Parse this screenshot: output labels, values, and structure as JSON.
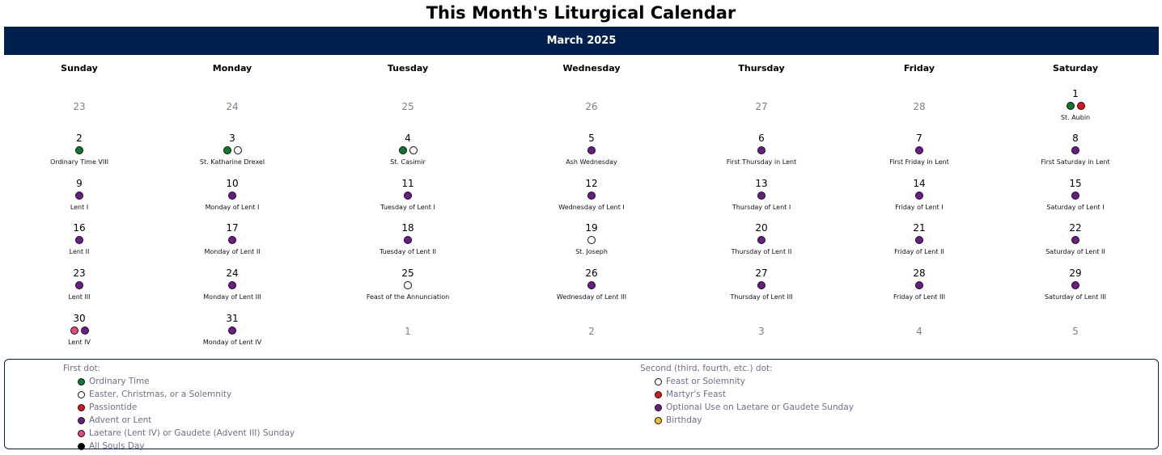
{
  "title": "This Month's Liturgical Calendar",
  "month_label": "March 2025",
  "weekdays": [
    "Sunday",
    "Monday",
    "Tuesday",
    "Wednesday",
    "Thursday",
    "Friday",
    "Saturday"
  ],
  "colors": {
    "navy": "#00214d",
    "green": "#0a7a2a",
    "white": "#ffffff",
    "red": "#e3121a",
    "purple": "#6e1a8a",
    "rose": "#e8487a",
    "black": "#000000",
    "gold": "#f2c21b"
  },
  "weeks": [
    [
      {
        "day": "23",
        "other": true,
        "dots": [],
        "label": ""
      },
      {
        "day": "24",
        "other": true,
        "dots": [],
        "label": ""
      },
      {
        "day": "25",
        "other": true,
        "dots": [],
        "label": ""
      },
      {
        "day": "26",
        "other": true,
        "dots": [],
        "label": ""
      },
      {
        "day": "27",
        "other": true,
        "dots": [],
        "label": ""
      },
      {
        "day": "28",
        "other": true,
        "dots": [],
        "label": ""
      },
      {
        "day": "1",
        "other": false,
        "dots": [
          "green",
          "red"
        ],
        "label": "St. Aubin"
      }
    ],
    [
      {
        "day": "2",
        "other": false,
        "dots": [
          "green"
        ],
        "label": "Ordinary Time VIII"
      },
      {
        "day": "3",
        "other": false,
        "dots": [
          "green",
          "white"
        ],
        "label": "St. Katharine Drexel"
      },
      {
        "day": "4",
        "other": false,
        "dots": [
          "green",
          "white"
        ],
        "label": "St. Casimir"
      },
      {
        "day": "5",
        "other": false,
        "dots": [
          "purple"
        ],
        "label": "Ash Wednesday"
      },
      {
        "day": "6",
        "other": false,
        "dots": [
          "purple"
        ],
        "label": "First Thursday in Lent"
      },
      {
        "day": "7",
        "other": false,
        "dots": [
          "purple"
        ],
        "label": "First Friday in Lent"
      },
      {
        "day": "8",
        "other": false,
        "dots": [
          "purple"
        ],
        "label": "First Saturday in Lent"
      }
    ],
    [
      {
        "day": "9",
        "other": false,
        "dots": [
          "purple"
        ],
        "label": "Lent I"
      },
      {
        "day": "10",
        "other": false,
        "dots": [
          "purple"
        ],
        "label": "Monday of Lent I"
      },
      {
        "day": "11",
        "other": false,
        "dots": [
          "purple"
        ],
        "label": "Tuesday of Lent I"
      },
      {
        "day": "12",
        "other": false,
        "dots": [
          "purple"
        ],
        "label": "Wednesday of Lent I"
      },
      {
        "day": "13",
        "other": false,
        "dots": [
          "purple"
        ],
        "label": "Thursday of Lent I"
      },
      {
        "day": "14",
        "other": false,
        "dots": [
          "purple"
        ],
        "label": "Friday of Lent I"
      },
      {
        "day": "15",
        "other": false,
        "dots": [
          "purple"
        ],
        "label": "Saturday of Lent I"
      }
    ],
    [
      {
        "day": "16",
        "other": false,
        "dots": [
          "purple"
        ],
        "label": "Lent II"
      },
      {
        "day": "17",
        "other": false,
        "dots": [
          "purple"
        ],
        "label": "Monday of Lent II"
      },
      {
        "day": "18",
        "other": false,
        "dots": [
          "purple"
        ],
        "label": "Tuesday of Lent II"
      },
      {
        "day": "19",
        "other": false,
        "dots": [
          "white"
        ],
        "label": "St. Joseph"
      },
      {
        "day": "20",
        "other": false,
        "dots": [
          "purple"
        ],
        "label": "Thursday of Lent II"
      },
      {
        "day": "21",
        "other": false,
        "dots": [
          "purple"
        ],
        "label": "Friday of Lent II"
      },
      {
        "day": "22",
        "other": false,
        "dots": [
          "purple"
        ],
        "label": "Saturday of Lent II"
      }
    ],
    [
      {
        "day": "23",
        "other": false,
        "dots": [
          "purple"
        ],
        "label": "Lent III"
      },
      {
        "day": "24",
        "other": false,
        "dots": [
          "purple"
        ],
        "label": "Monday of Lent III"
      },
      {
        "day": "25",
        "other": false,
        "dots": [
          "white"
        ],
        "label": "Feast of the Annunciation"
      },
      {
        "day": "26",
        "other": false,
        "dots": [
          "purple"
        ],
        "label": "Wednesday of Lent III"
      },
      {
        "day": "27",
        "other": false,
        "dots": [
          "purple"
        ],
        "label": "Thursday of Lent III"
      },
      {
        "day": "28",
        "other": false,
        "dots": [
          "purple"
        ],
        "label": "Friday of Lent III"
      },
      {
        "day": "29",
        "other": false,
        "dots": [
          "purple"
        ],
        "label": "Saturday of Lent III"
      }
    ],
    [
      {
        "day": "30",
        "other": false,
        "dots": [
          "rose",
          "purple"
        ],
        "label": "Lent IV"
      },
      {
        "day": "31",
        "other": false,
        "dots": [
          "purple"
        ],
        "label": "Monday of Lent IV"
      },
      {
        "day": "1",
        "other": true,
        "dots": [],
        "label": ""
      },
      {
        "day": "2",
        "other": true,
        "dots": [],
        "label": ""
      },
      {
        "day": "3",
        "other": true,
        "dots": [],
        "label": ""
      },
      {
        "day": "4",
        "other": true,
        "dots": [],
        "label": ""
      },
      {
        "day": "5",
        "other": true,
        "dots": [],
        "label": ""
      }
    ]
  ],
  "legend": {
    "first_heading": "First dot:",
    "first_items": [
      {
        "color": "green",
        "label": "Ordinary Time"
      },
      {
        "color": "white",
        "label": "Easter, Christmas, or a Solemnity"
      },
      {
        "color": "red",
        "label": "Passiontide"
      },
      {
        "color": "purple",
        "label": "Advent or Lent"
      },
      {
        "color": "rose",
        "label": "Laetare (Lent IV) or Gaudete (Advent III) Sunday"
      },
      {
        "color": "black",
        "label": "All Souls Day"
      }
    ],
    "second_heading": "Second (third, fourth, etc.) dot:",
    "second_items": [
      {
        "color": "white",
        "label": "Feast or Solemnity"
      },
      {
        "color": "red",
        "label": "Martyr's Feast"
      },
      {
        "color": "purple",
        "label": "Optional Use on Laetare or Gaudete Sunday"
      },
      {
        "color": "gold",
        "label": "Birthday"
      }
    ]
  }
}
